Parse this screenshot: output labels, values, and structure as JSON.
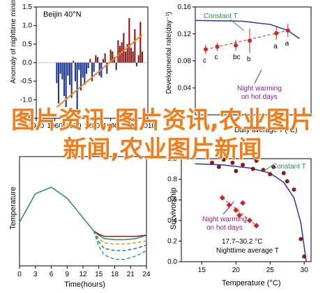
{
  "overlay_text": "图片资讯,图片资讯,农业图片新闻,农业图片新闻",
  "chart_data": [
    {
      "type": "bar",
      "panel": "top-left",
      "title": "Beijin 40°N",
      "ylabel": "Anomaly of nighttime minimum temperature on hot days",
      "xlim": [
        1950,
        2010
      ],
      "ylim": [
        -1.5,
        1.5
      ],
      "xticks": [
        1950,
        1960,
        1970,
        1980,
        1990,
        2000,
        2010
      ],
      "yticks": [
        -1.5,
        -1.0,
        -0.5,
        0.0,
        0.5,
        1.0,
        1.5
      ],
      "colors": {
        "positive": "#8b1a1a",
        "negative": "#1f3a93",
        "trend": "#f58220"
      },
      "x": [
        1961,
        1962,
        1963,
        1964,
        1965,
        1966,
        1967,
        1968,
        1969,
        1970,
        1971,
        1972,
        1973,
        1974,
        1975,
        1976,
        1977,
        1978,
        1979,
        1980,
        1981,
        1982,
        1983,
        1984,
        1985,
        1986,
        1987,
        1988,
        1989,
        1990,
        1991,
        1992,
        1993,
        1994,
        1995,
        1996,
        1997,
        1998,
        1999,
        2000,
        2001,
        2002,
        2003,
        2004,
        2005,
        2006,
        2007
      ],
      "values": [
        -0.55,
        -1.1,
        -0.3,
        -0.45,
        -0.9,
        -1.2,
        -0.35,
        -0.6,
        -0.95,
        0.05,
        -0.5,
        -1.3,
        -0.2,
        -0.75,
        -0.4,
        -0.6,
        -0.3,
        -0.15,
        0.1,
        -0.5,
        -0.25,
        0.2,
        0.15,
        -0.35,
        -0.4,
        0.1,
        0.25,
        -0.3,
        0.0,
        0.35,
        0.3,
        0.15,
        -0.2,
        0.6,
        0.45,
        0.55,
        0.8,
        0.3,
        0.5,
        1.2,
        0.4,
        0.3,
        0.9,
        -0.1,
        0.2,
        1.1,
        0.3
      ],
      "trend": {
        "x": [
          1961,
          2007
        ],
        "y": [
          -1.2,
          0.75
        ]
      }
    },
    {
      "type": "scatter",
      "panel": "top-right",
      "ylabel": "Developmental rate(day⁻¹)",
      "xlabel": "Daily average T (°C)",
      "ylim": [
        0.0,
        0.16
      ],
      "yticks": [
        0.04,
        0.08,
        0.12,
        0.16
      ],
      "series": [
        {
          "name": "Night warming on hot days",
          "color": "#d6221e",
          "points": [
            {
              "x": 0.09,
              "y": 0.097,
              "err": 0.007,
              "label": "c"
            },
            {
              "x": 0.19,
              "y": 0.101,
              "err": 0.006,
              "label": "c"
            },
            {
              "x": 0.35,
              "y": 0.103,
              "err": 0.008,
              "label": "bc"
            },
            {
              "x": 0.47,
              "y": 0.11,
              "err": 0.018,
              "label": "b"
            },
            {
              "x": 0.7,
              "y": 0.121,
              "err": 0.01,
              "label": "a"
            },
            {
              "x": 0.8,
              "y": 0.125,
              "err": 0.01,
              "label": "a"
            }
          ]
        },
        {
          "name": "Constant T",
          "color": "#2a37a6",
          "curve": [
            {
              "x": 0.0,
              "y": 0.14
            },
            {
              "x": 0.4,
              "y": 0.139
            },
            {
              "x": 0.65,
              "y": 0.134
            },
            {
              "x": 0.8,
              "y": 0.125
            },
            {
              "x": 0.9,
              "y": 0.113
            }
          ]
        }
      ],
      "annotations": [
        "Constant T",
        "Night warming on hot days"
      ]
    },
    {
      "type": "line",
      "panel": "bottom-left",
      "xlabel": "Time(hours)",
      "ylabel": "Temperature",
      "xlim": [
        0,
        24
      ],
      "xticks": [
        0,
        3,
        6,
        9,
        12,
        15,
        18,
        21,
        24
      ],
      "series": [
        {
          "name": "",
          "color": "#2a8a5a",
          "style": "solid",
          "x": [
            0,
            3,
            6,
            9,
            12,
            14,
            15,
            16,
            18,
            20,
            22,
            24
          ],
          "y": [
            0.4,
            0.66,
            0.72,
            0.62,
            0.44,
            0.32,
            0.28,
            0.25,
            0.24,
            0.24,
            0.25,
            0.28
          ]
        },
        {
          "name": "",
          "color": "#8b1a1a",
          "style": "solid",
          "x": [
            14,
            15,
            16,
            18,
            20,
            22,
            24
          ],
          "y": [
            0.32,
            0.29,
            0.27,
            0.27,
            0.27,
            0.27,
            0.28
          ]
        },
        {
          "name": "",
          "color": "#d4a017",
          "style": "dashed",
          "x": [
            14,
            15,
            16,
            18,
            20,
            22,
            24
          ],
          "y": [
            0.32,
            0.25,
            0.21,
            0.2,
            0.2,
            0.21,
            0.23
          ]
        },
        {
          "name": "",
          "color": "#2a8a5a",
          "style": "dashed",
          "x": [
            14,
            15,
            16,
            18,
            20,
            22,
            24
          ],
          "y": [
            0.32,
            0.22,
            0.16,
            0.14,
            0.14,
            0.16,
            0.19
          ]
        },
        {
          "name": "",
          "color": "#2aa0b0",
          "style": "dashed",
          "x": [
            14,
            15,
            16,
            18,
            20,
            22,
            24
          ],
          "y": [
            0.32,
            0.18,
            0.1,
            0.06,
            0.06,
            0.09,
            0.14
          ]
        }
      ]
    },
    {
      "type": "scatter",
      "panel": "bottom-right",
      "xlabel": "Temperature (°C)",
      "ylabel": "Survivorship",
      "xlim": [
        12,
        31
      ],
      "xticks": [
        15,
        20,
        25,
        30
      ],
      "ylim": [
        0.0,
        1.0
      ],
      "yticks": [
        0.0,
        0.2,
        0.4,
        0.6,
        0.8,
        1.0
      ],
      "series": [
        {
          "name": "Constant T",
          "color": "#8b1a1a",
          "marker": "circle",
          "points": [
            [
              16.5,
              0.96
            ],
            [
              17.5,
              0.92
            ],
            [
              18.2,
              0.99
            ],
            [
              19.5,
              0.96
            ],
            [
              20.0,
              0.88
            ],
            [
              21.0,
              0.94
            ],
            [
              22.5,
              0.9
            ],
            [
              23.0,
              0.98
            ],
            [
              24.0,
              0.89
            ],
            [
              25.0,
              0.85
            ],
            [
              25.5,
              0.92
            ],
            [
              27.0,
              0.86
            ],
            [
              27.5,
              0.78
            ],
            [
              28.5,
              0.7
            ],
            [
              29.5,
              0.22
            ],
            [
              30.0,
              0.05
            ]
          ]
        },
        {
          "name": "Night warming on hot days",
          "color": "#d6221e",
          "marker": "diamond",
          "points": [
            [
              18.0,
              0.62
            ],
            [
              19.0,
              0.55
            ],
            [
              20.0,
              0.5
            ],
            [
              20.5,
              0.45
            ],
            [
              21.0,
              0.57
            ],
            [
              22.0,
              0.4
            ],
            [
              23.0,
              0.35
            ]
          ]
        },
        {
          "name": "Constant T fit",
          "color": "#2a37a6",
          "curve": [
            [
              14.0,
              0.95
            ],
            [
              18.0,
              0.94
            ],
            [
              22.0,
              0.91
            ],
            [
              25.0,
              0.86
            ],
            [
              27.0,
              0.77
            ],
            [
              28.5,
              0.62
            ],
            [
              29.5,
              0.38
            ],
            [
              30.3,
              0.0
            ]
          ]
        }
      ],
      "footnote": "17.7–30.2 °C",
      "footnote2": "Nighttime average T",
      "annotations": [
        "Constant T",
        "Night warming on hot days"
      ]
    }
  ],
  "labels": {
    "tl_title": "Beijin 40°N",
    "tl_ylabel": "Anomaly of nighttime minimum temperature on hot days",
    "tr_ylabel": "Developmental rate(day⁻¹)",
    "tr_xlabel": "Daily average T (°C)",
    "tr_constant": "Constant T",
    "tr_night1": "Night warming",
    "tr_night2": "on hot days",
    "bl_xlabel": "Time(hours)",
    "bl_ylabel": "Temperature",
    "br_xlabel": "Temperature (°C)",
    "br_ylabel": "Survivorship",
    "br_constant": "Constant T",
    "br_night1": "Night warming",
    "br_night2": "on hot days",
    "br_range": "17.7–30.2 °C",
    "br_range2": "Nighttime average T"
  }
}
